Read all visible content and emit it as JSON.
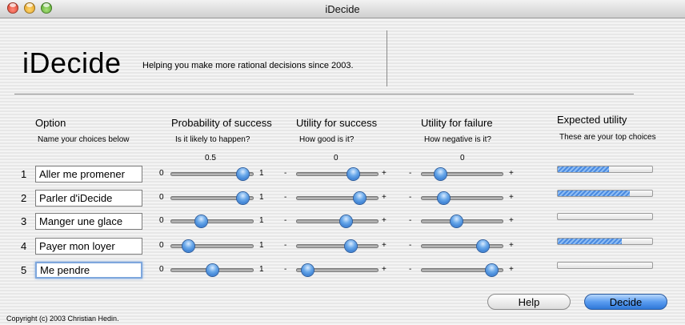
{
  "window": {
    "title": "iDecide"
  },
  "header": {
    "title": "iDecide",
    "tagline": "Helping you make more rational decisions since 2003."
  },
  "columns": {
    "option": {
      "heading": "Option",
      "subheading": "Name your choices below"
    },
    "probability": {
      "heading": "Probability of success",
      "subheading": "Is it likely to happen?",
      "current": "0.5",
      "min_label": "0",
      "max_label": "1"
    },
    "success": {
      "heading": "Utility for success",
      "subheading": "How good is it?",
      "current": "0",
      "min_label": "-",
      "max_label": "+"
    },
    "failure": {
      "heading": "Utility for failure",
      "subheading": "How negative is it?",
      "current": "0",
      "min_label": "-",
      "max_label": "+"
    },
    "expected": {
      "heading": "Expected utility",
      "subheading": "These are your top choices"
    }
  },
  "rows": [
    {
      "num": "1",
      "option": "Aller me promener",
      "probability": 0.93,
      "success": 0.73,
      "failure": 0.19,
      "expected": 0.54
    },
    {
      "num": "2",
      "option": "Parler d'iDecide",
      "probability": 0.93,
      "success": 0.82,
      "failure": 0.24,
      "expected": 0.76
    },
    {
      "num": "3",
      "option": "Manger une glace",
      "probability": 0.35,
      "success": 0.62,
      "failure": 0.42,
      "expected": 0.0
    },
    {
      "num": "4",
      "option": "Payer mon loyer",
      "probability": 0.17,
      "success": 0.69,
      "failure": 0.79,
      "expected": 0.68
    },
    {
      "num": "5",
      "option": "Me pendre",
      "probability": 0.5,
      "success": 0.08,
      "failure": 0.92,
      "expected": 0.0
    }
  ],
  "footer": {
    "copyright": "Copyright (c) 2003 Christian Hedin."
  },
  "buttons": {
    "help": "Help",
    "decide": "Decide"
  }
}
